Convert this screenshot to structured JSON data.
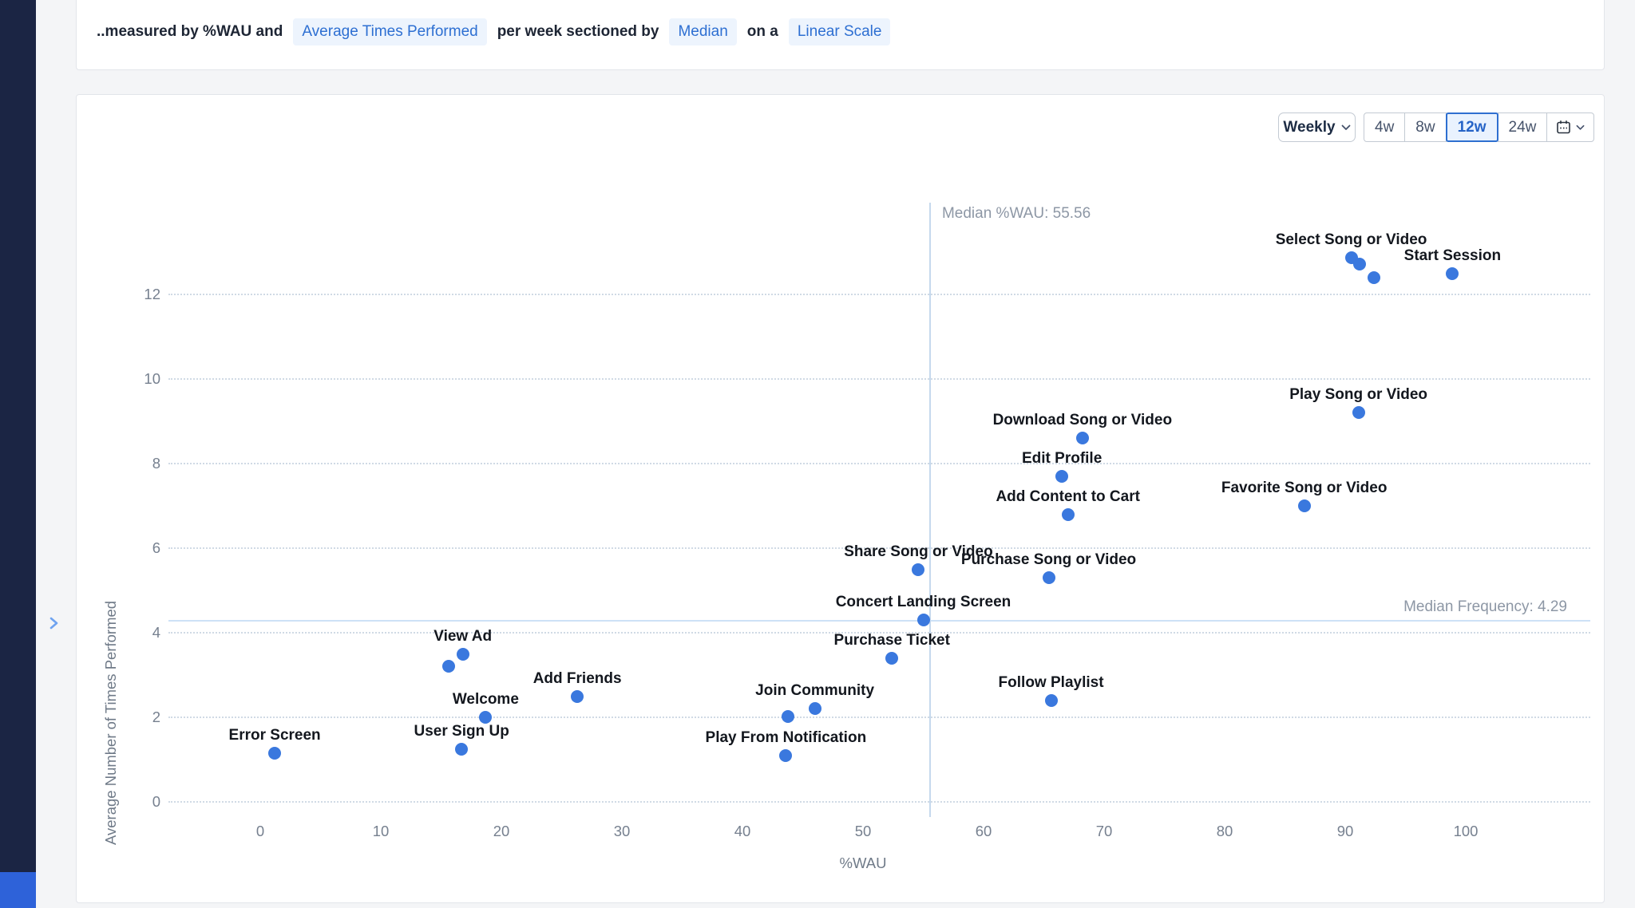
{
  "page": {
    "background_color": "#f4f5f7",
    "sidebar_color": "#1b2544",
    "accent_color": "#2e6fd0",
    "dot_color": "#3a78de"
  },
  "header": {
    "sentence_prefix": "..measured by %WAU and",
    "metric_pill": "Average Times Performed",
    "sentence_mid": "per week sectioned by",
    "section_pill": "Median",
    "sentence_on": "on a",
    "scale_pill": "Linear Scale"
  },
  "toolbar": {
    "interval_label": "Weekly",
    "interval_chevron_icon": "chevron-down-icon",
    "ranges": [
      {
        "label": "4w",
        "selected": false
      },
      {
        "label": "8w",
        "selected": false
      },
      {
        "label": "12w",
        "selected": true
      },
      {
        "label": "24w",
        "selected": false
      }
    ],
    "calendar_icon": "calendar-icon",
    "calendar_chevron_icon": "chevron-down-icon"
  },
  "sidebar": {
    "expander_icon": "chevron-right-icon"
  },
  "chart_data": {
    "type": "scatter",
    "xlabel": "%WAU",
    "ylabel": "Average Number of Times Performed",
    "xlim": [
      -7,
      104
    ],
    "ylim": [
      0,
      13.4
    ],
    "xticks": [
      0,
      10,
      20,
      30,
      40,
      50,
      60,
      70,
      80,
      90,
      100
    ],
    "yticks": [
      0,
      2,
      4,
      6,
      8,
      10,
      12
    ],
    "grid": "horizontal-dotted",
    "legend": "none",
    "medians": {
      "x": {
        "label": "Median %WAU: 55.56",
        "value": 55.56
      },
      "y": {
        "label": "Median Frequency: 4.29",
        "value": 4.29
      }
    },
    "points": [
      {
        "name": "Select Song or Video",
        "x": 90.5,
        "y": 12.87
      },
      {
        "name": "",
        "x": 91.2,
        "y": 12.72
      },
      {
        "name": "",
        "x": 92.4,
        "y": 12.4
      },
      {
        "name": "Start Session",
        "x": 98.9,
        "y": 12.5
      },
      {
        "name": "Play Song or Video",
        "x": 91.1,
        "y": 9.2
      },
      {
        "name": "Download Song or Video",
        "x": 68.2,
        "y": 8.6
      },
      {
        "name": "Edit Profile",
        "x": 66.5,
        "y": 7.7
      },
      {
        "name": "Add Content to Cart",
        "x": 67.0,
        "y": 6.8
      },
      {
        "name": "Favorite Song or Video",
        "x": 86.6,
        "y": 7.0
      },
      {
        "name": "Share Song or Video",
        "x": 54.6,
        "y": 5.5
      },
      {
        "name": "Purchase Song or Video",
        "x": 65.4,
        "y": 5.3
      },
      {
        "name": "Concert Landing Screen",
        "x": 55.0,
        "y": 4.3
      },
      {
        "name": "Purchase Ticket",
        "x": 52.4,
        "y": 3.4
      },
      {
        "name": "Follow Playlist",
        "x": 65.6,
        "y": 2.4
      },
      {
        "name": "View Ad",
        "x": 16.8,
        "y": 3.5
      },
      {
        "name": "",
        "x": 15.6,
        "y": 3.2
      },
      {
        "name": "Add Friends",
        "x": 26.3,
        "y": 2.5
      },
      {
        "name": "Welcome",
        "x": 18.7,
        "y": 2.0
      },
      {
        "name": "User Sign Up",
        "x": 16.7,
        "y": 1.25
      },
      {
        "name": "Error Screen",
        "x": 1.2,
        "y": 1.15
      },
      {
        "name": "Join Community",
        "x": 46.0,
        "y": 2.2
      },
      {
        "name": "",
        "x": 43.8,
        "y": 2.02
      },
      {
        "name": "Play From Notification",
        "x": 43.6,
        "y": 1.1
      }
    ]
  }
}
